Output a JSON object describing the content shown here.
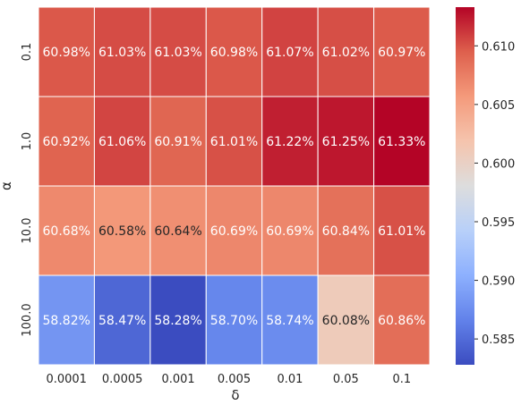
{
  "chart_data": {
    "type": "heatmap",
    "xlabel": "δ",
    "ylabel": "α",
    "x_categories": [
      "0.0001",
      "0.0005",
      "0.001",
      "0.005",
      "0.01",
      "0.05",
      "0.1"
    ],
    "y_categories": [
      "0.1",
      "1.0",
      "10.0",
      "100.0"
    ],
    "values": [
      [
        0.6098,
        0.6103,
        0.6103,
        0.6098,
        0.6107,
        0.6102,
        0.6097
      ],
      [
        0.6092,
        0.6106,
        0.6091,
        0.6101,
        0.6122,
        0.6125,
        0.6133
      ],
      [
        0.6068,
        0.6058,
        0.6064,
        0.6069,
        0.6069,
        0.6084,
        0.6101
      ],
      [
        0.5882,
        0.5847,
        0.5828,
        0.587,
        0.5874,
        0.6008,
        0.6086
      ]
    ],
    "cell_labels": [
      [
        "60.98%",
        "61.03%",
        "61.03%",
        "60.98%",
        "61.07%",
        "61.02%",
        "60.97%"
      ],
      [
        "60.92%",
        "61.06%",
        "60.91%",
        "61.01%",
        "61.22%",
        "61.25%",
        "61.33%"
      ],
      [
        "60.68%",
        "60.58%",
        "60.64%",
        "60.69%",
        "60.69%",
        "60.84%",
        "61.01%"
      ],
      [
        "58.82%",
        "58.47%",
        "58.28%",
        "58.70%",
        "58.74%",
        "60.08%",
        "60.86%"
      ]
    ],
    "colormap": "coolwarm",
    "colorbar": {
      "vmin": 0.5828,
      "vmax": 0.6133,
      "ticks": [
        0.585,
        0.59,
        0.595,
        0.6,
        0.605,
        0.61
      ],
      "tick_labels": [
        "0.585",
        "0.590",
        "0.595",
        "0.600",
        "0.605",
        "0.610"
      ]
    }
  }
}
